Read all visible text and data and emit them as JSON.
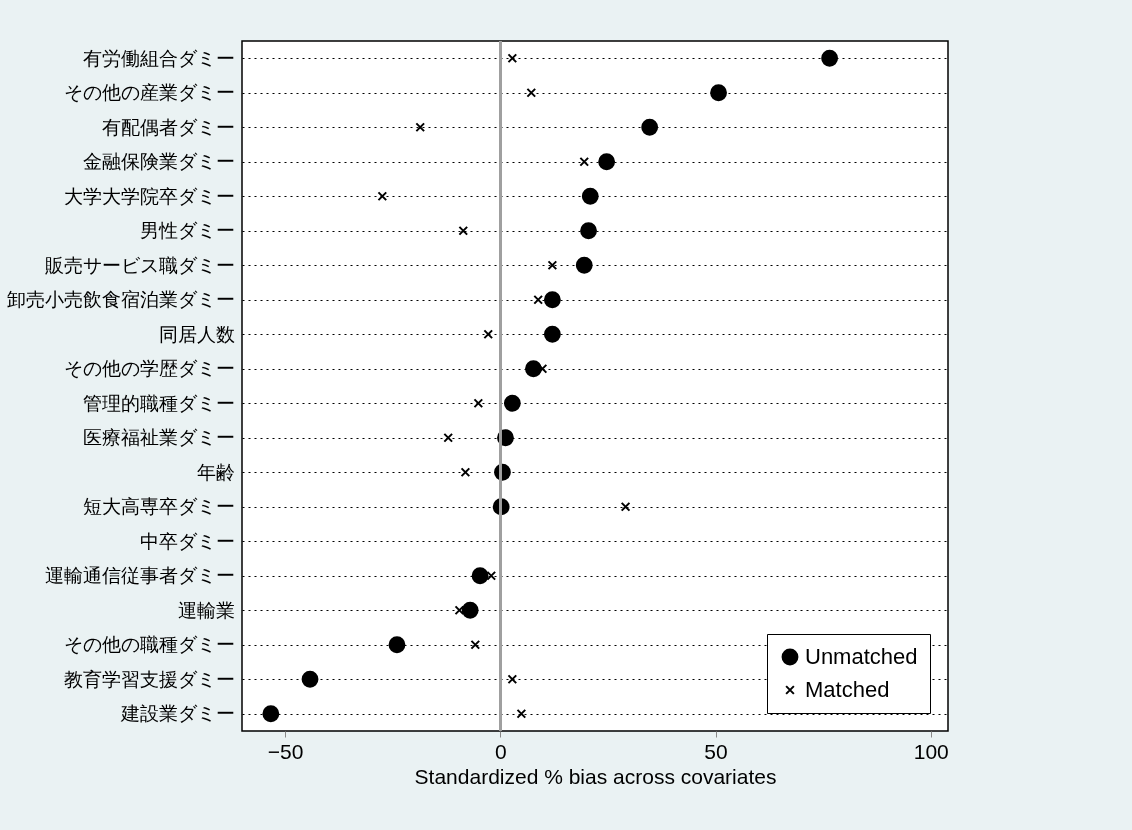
{
  "chart_data": {
    "type": "scatter",
    "orientation": "horizontal",
    "xlabel": "Standardized % bias across covariates",
    "categories": [
      "有労働組合ダミー",
      "その他の産業ダミー",
      "有配偶者ダミー",
      "金融保険業ダミー",
      "大学大学院卒ダミー",
      "男性ダミー",
      "販売サービス職ダミー",
      "卸売小売飲食宿泊業ダミー",
      "同居人数",
      "その他の学歴ダミー",
      "管理的職種ダミー",
      "医療福祉業ダミー",
      "年齢",
      "短大高専卒ダミー",
      "中卒ダミー",
      "運輸通信従事者ダミー",
      "運輸業",
      "その他の職種ダミー",
      "教育学習支援ダミー",
      "建設業ダミー"
    ],
    "series": [
      {
        "name": "Unmatched",
        "color": "#000000",
        "marker": "circle",
        "values": [
          76.5,
          50.7,
          34.7,
          24.7,
          20.9,
          20.5,
          19.5,
          12.1,
          12.1,
          7.7,
          2.8,
          1.2,
          0.5,
          0.2,
          null,
          -4.7,
          -7.0,
          -24.0,
          -44.2,
          -53.3
        ]
      },
      {
        "name": "Matched",
        "color": "#000000",
        "marker": "cross",
        "values": [
          2.8,
          7.2,
          -18.6,
          19.5,
          -27.4,
          -8.6,
          12.1,
          8.8,
          -2.8,
          9.8,
          -5.1,
          -12.1,
          -8.1,
          29.1,
          null,
          -2.1,
          -9.5,
          -5.8,
          2.8,
          4.9
        ]
      }
    ],
    "xlim": [
      -60,
      104
    ],
    "xticks": [
      -50,
      0,
      50,
      100
    ],
    "ref_lines": [
      {
        "axis": "x",
        "value": 0,
        "color": "#a0a0a0"
      }
    ],
    "grid": "y",
    "legend": "bottom right"
  }
}
